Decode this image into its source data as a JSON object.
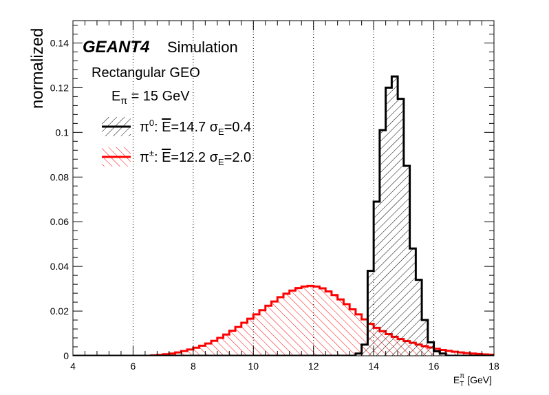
{
  "chart_data": {
    "type": "histogram",
    "xlabel": "E",
    "xlabel_sup": "π",
    "xlabel_sub": "T",
    "xlabel_unit": "[GeV]",
    "ylabel": "normalized",
    "xlim": [
      4,
      18
    ],
    "ylim": [
      0,
      0.15
    ],
    "x_ticks": [
      4,
      6,
      8,
      10,
      12,
      14,
      16,
      18
    ],
    "y_ticks": [
      0,
      0.02,
      0.04,
      0.06,
      0.08,
      0.1,
      0.12,
      0.14
    ],
    "vertical_gridlines": [
      6,
      8,
      10,
      12,
      14,
      16
    ],
    "legend_position": "top-left",
    "bin_width": 0.2,
    "annotations": {
      "brand": "GEANT4",
      "brand_suffix": "Simulation",
      "geometry": "Rectangular GEO",
      "energy_prefix": "E",
      "energy_sub": "π",
      "energy_suffix": " = 15 GeV"
    },
    "series": [
      {
        "name": "π⁰",
        "legend_particle": "π",
        "legend_particle_sup": "0",
        "legend_mean": "14.7",
        "legend_sigma": "0.4",
        "color": "#000000",
        "hatch": "forward-diagonal",
        "x": [
          13.4,
          13.6,
          13.8,
          14.0,
          14.2,
          14.4,
          14.6,
          14.8,
          15.0,
          15.2,
          15.4,
          15.6,
          15.8,
          16.0,
          16.2,
          16.4
        ],
        "y": [
          0.001,
          0.005,
          0.038,
          0.069,
          0.101,
          0.12,
          0.125,
          0.115,
          0.085,
          0.048,
          0.034,
          0.016,
          0.006,
          0.002,
          0.001,
          0.0
        ]
      },
      {
        "name": "π±",
        "legend_particle": "π",
        "legend_particle_sup": "±",
        "legend_mean": "12.2",
        "legend_sigma": "2.0",
        "color": "#ff0000",
        "hatch": "backward-diagonal",
        "x": [
          6.6,
          6.8,
          7.0,
          7.2,
          7.4,
          7.6,
          7.8,
          8.0,
          8.2,
          8.4,
          8.6,
          8.8,
          9.0,
          9.2,
          9.4,
          9.6,
          9.8,
          10.0,
          10.2,
          10.4,
          10.6,
          10.8,
          11.0,
          11.2,
          11.4,
          11.6,
          11.8,
          12.0,
          12.2,
          12.4,
          12.6,
          12.8,
          13.0,
          13.2,
          13.4,
          13.6,
          13.8,
          14.0,
          14.2,
          14.4,
          14.6,
          14.8,
          15.0,
          15.2,
          15.4,
          15.6,
          15.8,
          16.0,
          16.2,
          16.4,
          16.6,
          16.8,
          17.0,
          17.2,
          17.4,
          17.6,
          17.8
        ],
        "y": [
          0.0002,
          0.0004,
          0.0007,
          0.001,
          0.0015,
          0.0021,
          0.0028,
          0.0036,
          0.0045,
          0.0055,
          0.0067,
          0.008,
          0.0095,
          0.0112,
          0.0129,
          0.0148,
          0.0166,
          0.0185,
          0.0204,
          0.0224,
          0.0243,
          0.0262,
          0.0278,
          0.0292,
          0.0303,
          0.031,
          0.0313,
          0.031,
          0.0302,
          0.0288,
          0.0272,
          0.0252,
          0.0231,
          0.0208,
          0.0185,
          0.0163,
          0.0143,
          0.0125,
          0.011,
          0.0097,
          0.0085,
          0.0075,
          0.0066,
          0.0058,
          0.005,
          0.0043,
          0.0037,
          0.0031,
          0.0026,
          0.0022,
          0.0018,
          0.0015,
          0.0012,
          0.001,
          0.0008,
          0.0006,
          0.0005
        ]
      }
    ]
  }
}
